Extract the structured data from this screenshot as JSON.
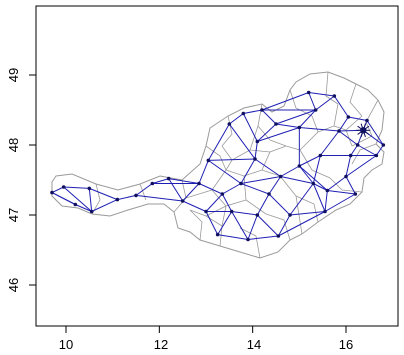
{
  "chart_data": {
    "type": "scatter",
    "title": "",
    "xlabel": "",
    "ylabel": "",
    "xlim": [
      9.2,
      17.3
    ],
    "ylim": [
      45.5,
      49.7
    ],
    "x_ticks": [
      "10",
      "12",
      "14",
      "16"
    ],
    "y_ticks": [
      "46",
      "47",
      "48",
      "49"
    ],
    "grid": false,
    "legend": "none",
    "colors": {
      "outline": "#9a9a9a",
      "edges": "#1f1fb4",
      "nodes": "#101060",
      "frame": "#000000"
    },
    "nodes": [
      [
        9.7,
        47.32
      ],
      [
        9.95,
        47.4
      ],
      [
        10.2,
        47.15
      ],
      [
        10.5,
        47.38
      ],
      [
        10.55,
        47.05
      ],
      [
        11.1,
        47.22
      ],
      [
        11.5,
        47.28
      ],
      [
        11.85,
        47.45
      ],
      [
        12.2,
        47.52
      ],
      [
        12.5,
        47.2
      ],
      [
        12.85,
        47.45
      ],
      [
        13.05,
        47.78
      ],
      [
        13.0,
        47.05
      ],
      [
        13.35,
        47.3
      ],
      [
        13.25,
        46.72
      ],
      [
        13.55,
        47.05
      ],
      [
        13.75,
        47.45
      ],
      [
        13.9,
        46.65
      ],
      [
        14.1,
        47.0
      ],
      [
        14.05,
        47.8
      ],
      [
        14.1,
        48.05
      ],
      [
        14.35,
        47.3
      ],
      [
        14.55,
        46.7
      ],
      [
        14.6,
        47.55
      ],
      [
        14.5,
        48.3
      ],
      [
        14.8,
        47.0
      ],
      [
        15.0,
        47.7
      ],
      [
        15.0,
        48.25
      ],
      [
        15.35,
        48.5
      ],
      [
        15.55,
        47.05
      ],
      [
        15.6,
        47.35
      ],
      [
        15.45,
        47.85
      ],
      [
        15.85,
        48.2
      ],
      [
        15.2,
        48.75
      ],
      [
        15.75,
        48.7
      ],
      [
        16.0,
        47.55
      ],
      [
        16.1,
        47.85
      ],
      [
        16.25,
        48.0
      ],
      [
        16.37,
        48.21
      ],
      [
        16.45,
        48.35
      ],
      [
        16.65,
        47.85
      ],
      [
        16.2,
        47.3
      ],
      [
        16.8,
        48.0
      ],
      [
        13.8,
        48.45
      ],
      [
        13.5,
        48.3
      ],
      [
        14.2,
        48.5
      ],
      [
        16.05,
        48.4
      ],
      [
        15.3,
        47.45
      ]
    ],
    "edges": [
      [
        0,
        1
      ],
      [
        0,
        2
      ],
      [
        1,
        3
      ],
      [
        2,
        4
      ],
      [
        3,
        4
      ],
      [
        3,
        5
      ],
      [
        4,
        5
      ],
      [
        5,
        6
      ],
      [
        6,
        7
      ],
      [
        7,
        8
      ],
      [
        8,
        9
      ],
      [
        9,
        10
      ],
      [
        10,
        11
      ],
      [
        8,
        10
      ],
      [
        9,
        12
      ],
      [
        10,
        13
      ],
      [
        12,
        13
      ],
      [
        12,
        14
      ],
      [
        13,
        15
      ],
      [
        14,
        15
      ],
      [
        14,
        17
      ],
      [
        15,
        17
      ],
      [
        15,
        18
      ],
      [
        13,
        16
      ],
      [
        11,
        16
      ],
      [
        16,
        19
      ],
      [
        11,
        19
      ],
      [
        19,
        20
      ],
      [
        16,
        21
      ],
      [
        18,
        21
      ],
      [
        17,
        18
      ],
      [
        17,
        22
      ],
      [
        18,
        22
      ],
      [
        21,
        23
      ],
      [
        19,
        23
      ],
      [
        20,
        24
      ],
      [
        22,
        25
      ],
      [
        21,
        25
      ],
      [
        23,
        26
      ],
      [
        24,
        27
      ],
      [
        27,
        28
      ],
      [
        26,
        27
      ],
      [
        25,
        29
      ],
      [
        29,
        30
      ],
      [
        26,
        30
      ],
      [
        26,
        31
      ],
      [
        31,
        32
      ],
      [
        27,
        32
      ],
      [
        28,
        33
      ],
      [
        33,
        34
      ],
      [
        28,
        34
      ],
      [
        34,
        46
      ],
      [
        32,
        38
      ],
      [
        30,
        35
      ],
      [
        35,
        36
      ],
      [
        36,
        37
      ],
      [
        37,
        38
      ],
      [
        38,
        39
      ],
      [
        39,
        46
      ],
      [
        36,
        40
      ],
      [
        37,
        40
      ],
      [
        40,
        42
      ],
      [
        38,
        42
      ],
      [
        35,
        41
      ],
      [
        41,
        29
      ],
      [
        11,
        44
      ],
      [
        44,
        43
      ],
      [
        43,
        45
      ],
      [
        45,
        24
      ],
      [
        20,
        43
      ],
      [
        44,
        19
      ],
      [
        2,
        0
      ],
      [
        1,
        4
      ],
      [
        6,
        9
      ],
      [
        7,
        10
      ],
      [
        12,
        15
      ],
      [
        16,
        23
      ],
      [
        20,
        27
      ],
      [
        24,
        28
      ],
      [
        31,
        36
      ],
      [
        32,
        46
      ],
      [
        39,
        42
      ],
      [
        30,
        41
      ],
      [
        25,
        47
      ],
      [
        47,
        30
      ],
      [
        47,
        29
      ],
      [
        47,
        26
      ],
      [
        23,
        47
      ],
      [
        31,
        47
      ],
      [
        45,
        28
      ],
      [
        35,
        40
      ],
      [
        32,
        37
      ],
      [
        22,
        29
      ],
      [
        33,
        45
      ]
    ]
  }
}
